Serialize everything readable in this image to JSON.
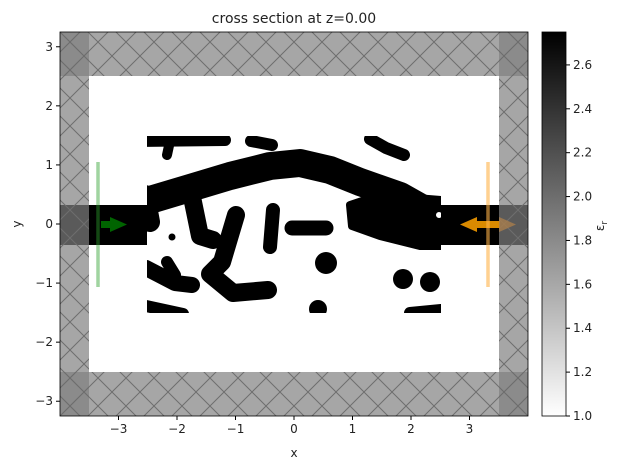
{
  "chart_data": {
    "type": "heatmap",
    "title": "cross section at z=0.00",
    "xlabel": "x",
    "ylabel": "y",
    "xlim": [
      -4.0,
      4.0
    ],
    "ylim": [
      -3.25,
      3.25
    ],
    "xticks": [
      -3,
      -2,
      -1,
      0,
      1,
      2,
      3
    ],
    "yticks": [
      -3,
      -2,
      -1,
      0,
      1,
      2,
      3
    ],
    "grid": false,
    "colormap": "Greys",
    "colorbar": {
      "label": "ε",
      "label_sub": "r",
      "range": [
        1.0,
        2.75
      ],
      "ticks": [
        "1.0",
        "1.2",
        "1.4",
        "1.6",
        "1.8",
        "2.0",
        "2.2",
        "2.4",
        "2.6"
      ]
    },
    "structures": {
      "waveguide_y": [
        -0.35,
        0.35
      ],
      "design_region": {
        "x": [
          -2.5,
          2.5
        ],
        "y": [
          -1.5,
          1.5
        ]
      },
      "pml_inner": {
        "x": [
          -3.5,
          3.5
        ],
        "y": [
          -2.5,
          2.5
        ]
      },
      "source_x": -3.35,
      "monitor_x": 3.3,
      "source_color": "#2ca02c",
      "monitor_color": "#ff9f0e"
    }
  }
}
